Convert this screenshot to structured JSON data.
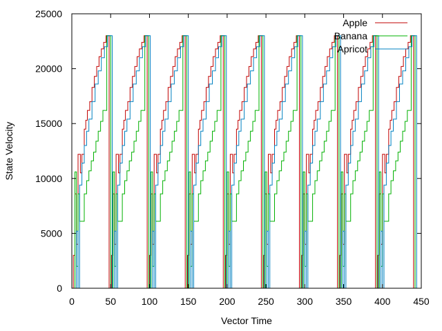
{
  "chart_data": {
    "type": "line",
    "title": "",
    "xlabel": "Vector Time",
    "ylabel": "State Velocity",
    "xlim": [
      0,
      450
    ],
    "ylim": [
      0,
      25000
    ],
    "x_ticks": [
      0,
      50,
      100,
      150,
      200,
      250,
      300,
      350,
      400,
      450
    ],
    "y_ticks": [
      0,
      5000,
      10000,
      15000,
      20000,
      25000
    ],
    "grid": false,
    "legend_position": "top-right",
    "series": [
      {
        "name": "Apple",
        "color": "#c00000",
        "cycle_period": 49,
        "cycle_count": 9,
        "points": [
          [
            0,
            0
          ],
          [
            2,
            3000
          ],
          [
            4,
            8600
          ],
          [
            6,
            4000
          ],
          [
            8,
            12200
          ],
          [
            11,
            10500
          ],
          [
            13,
            12200
          ],
          [
            16,
            14500
          ],
          [
            18,
            15300
          ],
          [
            20,
            16200
          ],
          [
            23,
            17000
          ],
          [
            26,
            18300
          ],
          [
            29,
            19300
          ],
          [
            32,
            20200
          ],
          [
            35,
            21100
          ],
          [
            38,
            21800
          ],
          [
            41,
            22400
          ],
          [
            44,
            23000
          ],
          [
            47,
            23000
          ],
          [
            48,
            0
          ]
        ]
      },
      {
        "name": "Banana",
        "color": "#00b000",
        "cycle_period": 49,
        "cycle_count": 9,
        "points": [
          [
            0,
            0
          ],
          [
            2,
            10600
          ],
          [
            4,
            2000
          ],
          [
            6,
            8600
          ],
          [
            8,
            6100
          ],
          [
            12,
            6100
          ],
          [
            14,
            8600
          ],
          [
            17,
            9800
          ],
          [
            20,
            10700
          ],
          [
            23,
            11600
          ],
          [
            26,
            12400
          ],
          [
            29,
            13400
          ],
          [
            32,
            14300
          ],
          [
            35,
            15200
          ],
          [
            38,
            16200
          ],
          [
            42,
            16200
          ],
          [
            43,
            23000
          ],
          [
            47,
            23000
          ],
          [
            48,
            0
          ]
        ]
      },
      {
        "name": "Apricot",
        "color": "#0080c0",
        "cycle_period": 49,
        "cycle_count": 9,
        "points": [
          [
            0,
            0
          ],
          [
            2,
            5200
          ],
          [
            4,
            0
          ],
          [
            6,
            9400
          ],
          [
            9,
            11400
          ],
          [
            12,
            13000
          ],
          [
            15,
            14300
          ],
          [
            18,
            15400
          ],
          [
            22,
            17000
          ],
          [
            26,
            18600
          ],
          [
            30,
            19800
          ],
          [
            34,
            21000
          ],
          [
            38,
            22000
          ],
          [
            42,
            23000
          ],
          [
            47,
            23000
          ],
          [
            48,
            0
          ]
        ]
      }
    ]
  }
}
